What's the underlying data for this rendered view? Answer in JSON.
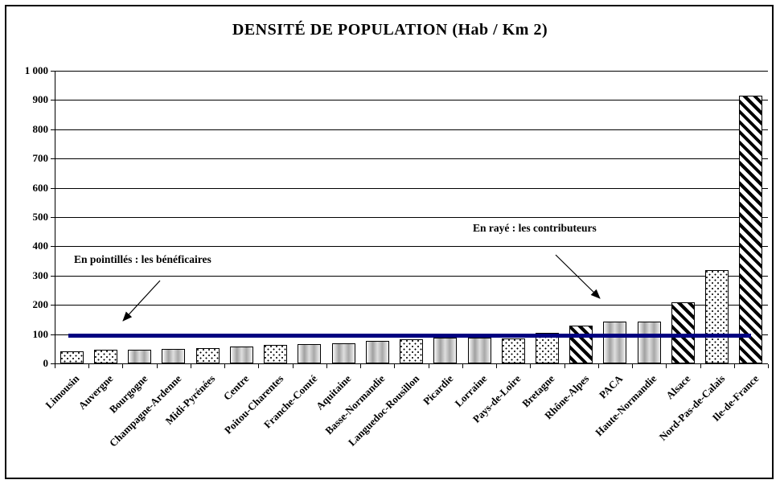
{
  "chart_data": {
    "type": "bar",
    "title": "DENSITÉ DE POPULATION (Hab / Km 2)",
    "xlabel": "",
    "ylabel": "",
    "ylim": [
      0,
      1000
    ],
    "ytick_interval": 100,
    "ytick_labels": [
      "0",
      "100",
      "200",
      "300",
      "400",
      "500",
      "600",
      "700",
      "800",
      "900",
      "1 000"
    ],
    "grid": true,
    "legend_position": "none",
    "categories": [
      "Limousin",
      "Auvergne",
      "Bourgogne",
      "Champagne-Ardenne",
      "Midi-Pyrénées",
      "Centre",
      "Poitou-Charentes",
      "Franche-Comté",
      "Aquitaine",
      "Basse-Normandie",
      "Languedoc-Rousillon",
      "Picardie",
      "Lorraine",
      "Pays-de-Loire",
      "Bretagne",
      "Rhône-Alpes",
      "PACA",
      "Haute-Normandie",
      "Alsace",
      "Nord-Pas-de-Calais",
      "Ile-de-France"
    ],
    "values": [
      42,
      48,
      48,
      49,
      53,
      59,
      62,
      66,
      68,
      78,
      82,
      87,
      88,
      86,
      105,
      128,
      143,
      143,
      210,
      320,
      915
    ],
    "patterns": [
      "dotted",
      "dotted",
      "gradient",
      "gradient",
      "dotted",
      "gradient",
      "dotted",
      "gradient",
      "gradient",
      "gradient",
      "dotted",
      "gradient",
      "gradient",
      "dotted",
      "dotted",
      "striped",
      "gradient",
      "gradient",
      "striped",
      "dotted",
      "striped"
    ],
    "average_line": {
      "value": 95,
      "color": "#000080"
    },
    "annotations": [
      {
        "id": "dotted",
        "text": "En pointillés : les bénéficaires"
      },
      {
        "id": "striped",
        "text": "En rayé : les contributeurs"
      }
    ],
    "pattern_meanings": {
      "dotted": "bénéficaires",
      "striped": "contributeurs"
    }
  }
}
